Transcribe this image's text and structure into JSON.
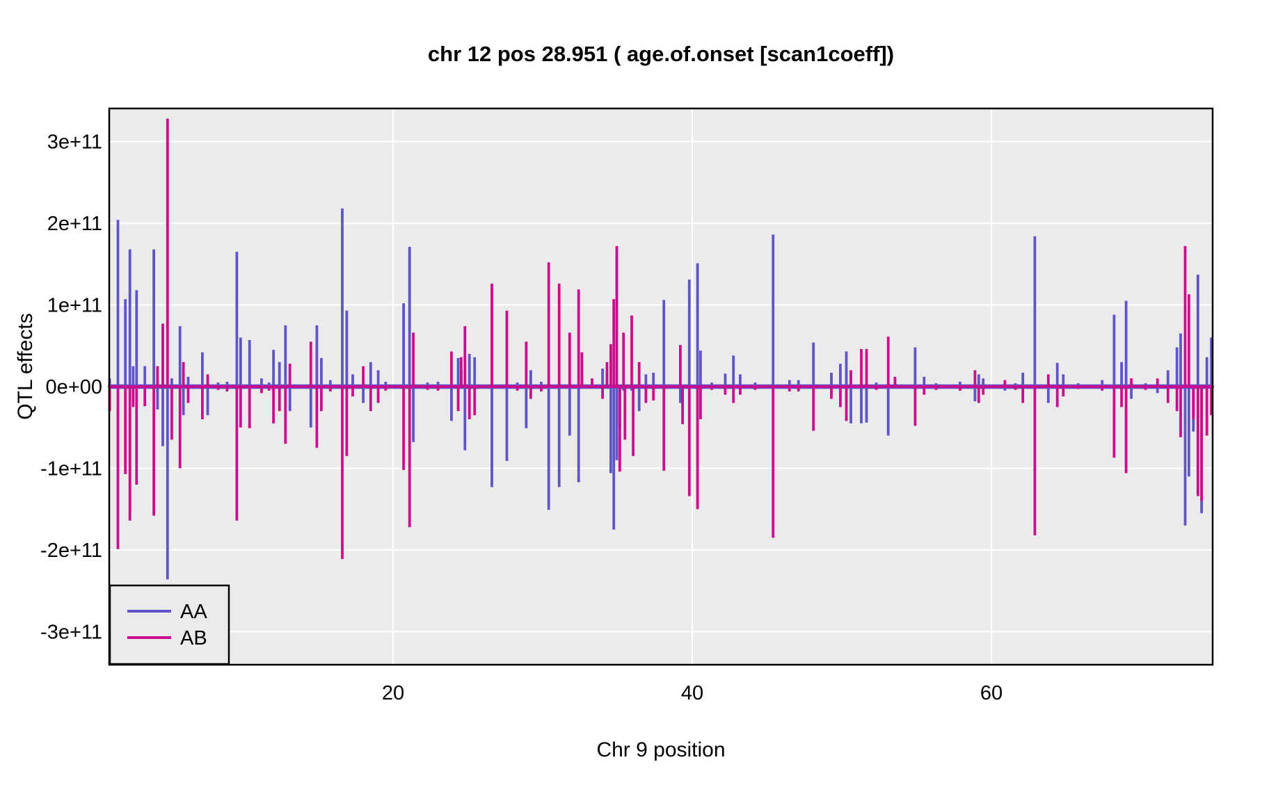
{
  "title": "chr 12 pos 28.951 ( age.of.onset  [scan1coeff])",
  "chart_data": {
    "type": "line",
    "subtype": "qtl-effect-spike-profile",
    "title": "chr 12 pos 28.951 ( age.of.onset  [scan1coeff])",
    "xlabel": "Chr 9 position",
    "ylabel": "QTL effects",
    "grid": "on",
    "panel_bg": "#EBEBEB",
    "grid_color": "#FFFFFF",
    "border_color": "#000000",
    "value_unit": 100000000000.0,
    "xlim": [
      1.02,
      74.8
    ],
    "ylim": [
      -341000000000.0,
      341000000000.0
    ],
    "x_ticks": [
      {
        "v": 20,
        "label": "20"
      },
      {
        "v": 40,
        "label": "40"
      },
      {
        "v": 60,
        "label": "60"
      }
    ],
    "y_ticks": [
      {
        "v": 3,
        "label": "3e+11"
      },
      {
        "v": 2,
        "label": "2e+11"
      },
      {
        "v": 1,
        "label": "1e+11"
      },
      {
        "v": 0,
        "label": "0e+00"
      },
      {
        "v": -1,
        "label": "-1e+11"
      },
      {
        "v": -2,
        "label": "-2e+11"
      },
      {
        "v": -3,
        "label": "-3e+11"
      }
    ],
    "legend": {
      "position": "bottom-left",
      "entries": [
        {
          "label": "AA",
          "color": "#6055C8"
        },
        {
          "label": "AB",
          "color": "#C90D8C"
        }
      ]
    },
    "series_names": [
      "AA",
      "AB"
    ],
    "baseline": 0,
    "spikes_format": "[x_position, AA_effect_in_1e11, AB_effect_in_1e11]",
    "spikes": [
      [
        1.05,
        0.1,
        -0.3
      ],
      [
        1.6,
        2.04,
        -1.99
      ],
      [
        2.1,
        1.07,
        -1.07
      ],
      [
        2.4,
        1.68,
        -1.64
      ],
      [
        2.62,
        0.25,
        -0.25
      ],
      [
        2.85,
        1.18,
        -1.2
      ],
      [
        3.4,
        0.25,
        -0.24
      ],
      [
        4.0,
        1.68,
        -1.58
      ],
      [
        4.25,
        -0.28,
        0.25
      ],
      [
        4.6,
        -0.73,
        0.77
      ],
      [
        4.92,
        -2.36,
        3.28
      ],
      [
        5.2,
        0.1,
        -0.65
      ],
      [
        5.75,
        0.74,
        -1.0
      ],
      [
        5.98,
        -0.35,
        0.3
      ],
      [
        6.3,
        0.12,
        -0.2
      ],
      [
        7.25,
        0.42,
        -0.4
      ],
      [
        7.6,
        -0.35,
        0.15
      ],
      [
        8.3,
        0.05,
        -0.04
      ],
      [
        8.9,
        0.06,
        -0.06
      ],
      [
        9.55,
        1.65,
        -1.64
      ],
      [
        9.8,
        0.6,
        -0.5
      ],
      [
        10.4,
        0.57,
        -0.51
      ],
      [
        11.2,
        0.1,
        -0.08
      ],
      [
        11.7,
        0.05,
        -0.05
      ],
      [
        12.0,
        0.45,
        -0.45
      ],
      [
        12.4,
        0.3,
        -0.3
      ],
      [
        12.8,
        0.75,
        -0.7
      ],
      [
        13.1,
        -0.3,
        0.28
      ],
      [
        14.5,
        -0.5,
        0.55
      ],
      [
        14.9,
        0.75,
        -0.75
      ],
      [
        15.2,
        0.35,
        -0.3
      ],
      [
        15.8,
        0.08,
        -0.06
      ],
      [
        16.6,
        2.18,
        -2.11
      ],
      [
        16.9,
        0.93,
        -0.85
      ],
      [
        17.3,
        0.15,
        -0.12
      ],
      [
        18.0,
        -0.2,
        0.25
      ],
      [
        18.5,
        0.3,
        -0.3
      ],
      [
        19.0,
        0.2,
        -0.2
      ],
      [
        19.5,
        0.06,
        -0.05
      ],
      [
        20.7,
        1.02,
        -1.02
      ],
      [
        21.1,
        1.71,
        -1.72
      ],
      [
        21.35,
        -0.68,
        0.66
      ],
      [
        22.3,
        0.05,
        -0.04
      ],
      [
        23.0,
        0.06,
        -0.05
      ],
      [
        23.9,
        -0.42,
        0.43
      ],
      [
        24.35,
        0.35,
        -0.3
      ],
      [
        24.55,
        0.2,
        0.36
      ],
      [
        24.8,
        -0.78,
        0.74
      ],
      [
        25.1,
        0.4,
        -0.4
      ],
      [
        25.45,
        0.36,
        -0.35
      ],
      [
        26.6,
        -1.23,
        1.26
      ],
      [
        27.6,
        -0.91,
        0.93
      ],
      [
        28.3,
        0.05,
        -0.05
      ],
      [
        28.9,
        -0.51,
        0.55
      ],
      [
        29.2,
        0.2,
        -0.15
      ],
      [
        29.9,
        0.06,
        -0.06
      ],
      [
        30.4,
        -1.51,
        1.52
      ],
      [
        31.1,
        -1.23,
        1.26
      ],
      [
        31.8,
        -0.6,
        0.66
      ],
      [
        32.4,
        -1.17,
        1.19
      ],
      [
        32.62,
        0.1,
        0.42
      ],
      [
        33.3,
        0.06,
        0.1
      ],
      [
        34.0,
        0.22,
        -0.15
      ],
      [
        34.3,
        0.18,
        0.3
      ],
      [
        34.55,
        -1.06,
        0.52
      ],
      [
        34.75,
        -1.75,
        1.07
      ],
      [
        34.95,
        -0.9,
        1.72
      ],
      [
        35.15,
        -0.5,
        -1.04
      ],
      [
        35.4,
        -0.05,
        0.66
      ],
      [
        35.5,
        0.0,
        -0.65
      ],
      [
        35.95,
        -0.05,
        0.87
      ],
      [
        36.05,
        0.0,
        -0.85
      ],
      [
        36.45,
        -0.3,
        0.3
      ],
      [
        36.9,
        0.15,
        -0.2
      ],
      [
        37.4,
        0.17,
        -0.17
      ],
      [
        38.1,
        1.06,
        -1.03
      ],
      [
        39.2,
        -0.2,
        0.51
      ],
      [
        39.35,
        0.0,
        -0.46
      ],
      [
        39.8,
        1.31,
        -1.34
      ],
      [
        40.35,
        1.51,
        -1.5
      ],
      [
        40.55,
        0.44,
        -0.4
      ],
      [
        41.3,
        0.05,
        -0.04
      ],
      [
        42.2,
        0.16,
        -0.1
      ],
      [
        42.75,
        0.38,
        -0.2
      ],
      [
        43.2,
        0.15,
        -0.1
      ],
      [
        44.2,
        0.05,
        -0.04
      ],
      [
        45.4,
        1.86,
        -1.85
      ],
      [
        46.5,
        0.08,
        -0.06
      ],
      [
        47.1,
        0.08,
        -0.06
      ],
      [
        48.1,
        0.54,
        -0.54
      ],
      [
        49.3,
        0.17,
        -0.15
      ],
      [
        49.9,
        0.28,
        -0.25
      ],
      [
        50.3,
        0.43,
        -0.42
      ],
      [
        50.6,
        -0.45,
        0.2
      ],
      [
        51.3,
        -0.45,
        0.46
      ],
      [
        51.65,
        -0.44,
        0.46
      ],
      [
        52.3,
        0.05,
        -0.04
      ],
      [
        53.1,
        -0.6,
        0.61
      ],
      [
        53.55,
        0.1,
        0.12
      ],
      [
        54.9,
        0.48,
        -0.48
      ],
      [
        55.5,
        0.12,
        -0.1
      ],
      [
        56.3,
        0.04,
        -0.04
      ],
      [
        57.9,
        0.06,
        -0.05
      ],
      [
        58.9,
        -0.18,
        0.2
      ],
      [
        59.15,
        0.15,
        -0.2
      ],
      [
        59.45,
        0.1,
        -0.1
      ],
      [
        60.9,
        -0.05,
        0.08
      ],
      [
        61.6,
        0.04,
        -0.04
      ],
      [
        62.1,
        0.17,
        -0.2
      ],
      [
        62.9,
        1.84,
        -1.82
      ],
      [
        63.8,
        -0.2,
        0.15
      ],
      [
        64.4,
        0.29,
        -0.25
      ],
      [
        64.8,
        0.15,
        -0.12
      ],
      [
        65.8,
        0.04,
        -0.03
      ],
      [
        67.4,
        0.08,
        -0.05
      ],
      [
        68.2,
        0.88,
        -0.87
      ],
      [
        68.7,
        0.3,
        -0.25
      ],
      [
        69.0,
        1.05,
        -1.06
      ],
      [
        69.35,
        -0.15,
        0.1
      ],
      [
        70.3,
        0.04,
        -0.04
      ],
      [
        71.1,
        -0.08,
        0.1
      ],
      [
        71.8,
        0.2,
        -0.2
      ],
      [
        72.4,
        0.48,
        -0.3
      ],
      [
        72.65,
        0.65,
        -0.62
      ],
      [
        72.95,
        -1.7,
        1.72
      ],
      [
        73.2,
        -1.1,
        1.13
      ],
      [
        73.5,
        -0.55,
        -0.4
      ],
      [
        73.8,
        1.37,
        -1.34
      ],
      [
        74.05,
        -1.55,
        -1.4
      ],
      [
        74.4,
        0.36,
        -0.6
      ],
      [
        74.7,
        0.6,
        -0.35
      ]
    ]
  }
}
